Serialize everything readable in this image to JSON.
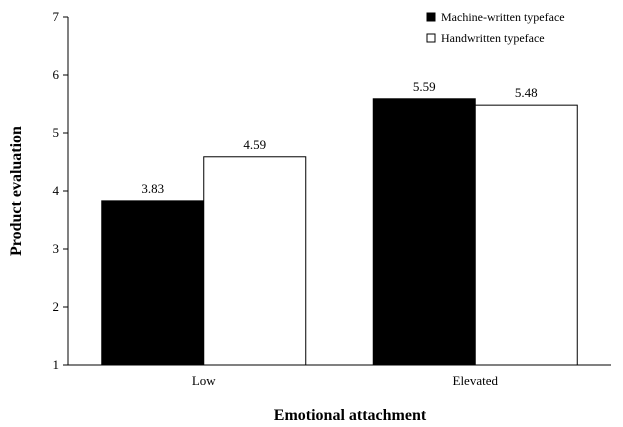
{
  "chart_data": {
    "type": "bar",
    "title": "",
    "xlabel": "Emotional attachment",
    "ylabel": "Product evaluation",
    "ylim": [
      1,
      7
    ],
    "yticks": [
      1,
      2,
      3,
      4,
      5,
      6,
      7
    ],
    "categories": [
      "Low",
      "Elevated"
    ],
    "series": [
      {
        "name": "Machine-written typeface",
        "values": [
          3.83,
          5.59
        ],
        "value_labels": [
          "3.83",
          "5.59"
        ],
        "color": "#000000"
      },
      {
        "name": "Handwritten typeface",
        "values": [
          4.59,
          5.48
        ],
        "value_labels": [
          "4.59",
          "5.48"
        ],
        "color": "#ffffff"
      }
    ],
    "grid": false,
    "legend_position": "top-right"
  }
}
